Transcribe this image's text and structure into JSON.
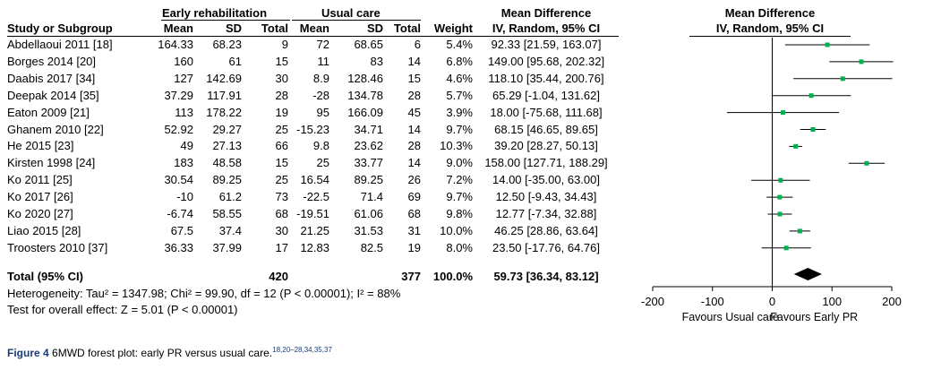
{
  "table": {
    "group_er": "Early rehabilitation",
    "group_uc": "Usual care",
    "group_md": "Mean Difference",
    "group_md2": "Mean Difference",
    "col_study": "Study or Subgroup",
    "col_mean1": "Mean",
    "col_sd1": "SD",
    "col_total1": "Total",
    "col_mean2": "Mean",
    "col_sd2": "SD",
    "col_total2": "Total",
    "col_weight": "Weight",
    "col_md": "IV, Random, 95% CI",
    "col_md2": "IV, Random, 95% CI",
    "rows": [
      {
        "study": "Abdellaoui 2011 [18]",
        "m1": "164.33",
        "sd1": "68.23",
        "n1": "9",
        "m2": "72",
        "sd2": "68.65",
        "n2": "6",
        "w": "5.4%",
        "md": "92.33 [21.59, 163.07]"
      },
      {
        "study": "Borges 2014 [20]",
        "m1": "160",
        "sd1": "61",
        "n1": "15",
        "m2": "11",
        "sd2": "83",
        "n2": "14",
        "w": "6.8%",
        "md": "149.00 [95.68, 202.32]"
      },
      {
        "study": "Daabis 2017 [34]",
        "m1": "127",
        "sd1": "142.69",
        "n1": "30",
        "m2": "8.9",
        "sd2": "128.46",
        "n2": "15",
        "w": "4.6%",
        "md": "118.10 [35.44, 200.76]"
      },
      {
        "study": "Deepak 2014 [35]",
        "m1": "37.29",
        "sd1": "117.91",
        "n1": "28",
        "m2": "-28",
        "sd2": "134.78",
        "n2": "28",
        "w": "5.7%",
        "md": "65.29 [-1.04, 131.62]"
      },
      {
        "study": "Eaton 2009 [21]",
        "m1": "113",
        "sd1": "178.22",
        "n1": "19",
        "m2": "95",
        "sd2": "166.09",
        "n2": "45",
        "w": "3.9%",
        "md": "18.00 [-75.68, 111.68]"
      },
      {
        "study": "Ghanem 2010 [22]",
        "m1": "52.92",
        "sd1": "29.27",
        "n1": "25",
        "m2": "-15.23",
        "sd2": "34.71",
        "n2": "14",
        "w": "9.7%",
        "md": "68.15 [46.65, 89.65]"
      },
      {
        "study": "He 2015 [23]",
        "m1": "49",
        "sd1": "27.13",
        "n1": "66",
        "m2": "9.8",
        "sd2": "23.62",
        "n2": "28",
        "w": "10.3%",
        "md": "39.20 [28.27, 50.13]"
      },
      {
        "study": "Kirsten 1998 [24]",
        "m1": "183",
        "sd1": "48.58",
        "n1": "15",
        "m2": "25",
        "sd2": "33.77",
        "n2": "14",
        "w": "9.0%",
        "md": "158.00 [127.71, 188.29]"
      },
      {
        "study": "Ko 2011 [25]",
        "m1": "30.54",
        "sd1": "89.25",
        "n1": "25",
        "m2": "16.54",
        "sd2": "89.25",
        "n2": "26",
        "w": "7.2%",
        "md": "14.00 [-35.00, 63.00]"
      },
      {
        "study": "Ko 2017 [26]",
        "m1": "-10",
        "sd1": "61.2",
        "n1": "73",
        "m2": "-22.5",
        "sd2": "71.4",
        "n2": "69",
        "w": "9.7%",
        "md": "12.50 [-9.43, 34.43]"
      },
      {
        "study": "Ko 2020 [27]",
        "m1": "-6.74",
        "sd1": "58.55",
        "n1": "68",
        "m2": "-19.51",
        "sd2": "61.06",
        "n2": "68",
        "w": "9.8%",
        "md": "12.77 [-7.34, 32.88]"
      },
      {
        "study": "Liao 2015 [28]",
        "m1": "67.5",
        "sd1": "37.4",
        "n1": "30",
        "m2": "21.25",
        "sd2": "31.53",
        "n2": "31",
        "w": "10.0%",
        "md": "46.25 [28.86, 63.64]"
      },
      {
        "study": "Troosters 2010 [37]",
        "m1": "36.33",
        "sd1": "37.99",
        "n1": "17",
        "m2": "12.83",
        "sd2": "82.5",
        "n2": "19",
        "w": "8.0%",
        "md": "23.50 [-17.76, 64.76]"
      }
    ],
    "total": {
      "label": "Total (95% CI)",
      "n1": "420",
      "n2": "377",
      "w": "100.0%",
      "md": "59.73 [36.34, 83.12]"
    },
    "heterogeneity": "Heterogeneity: Tau² = 1347.98; Chi² = 99.90, df = 12 (P < 0.00001); I² = 88%",
    "overall_test": "Test for overall effect: Z = 5.01 (P < 0.00001)"
  },
  "chart_data": {
    "type": "scatter",
    "title": "Mean Difference",
    "subtitle": "IV, Random, 95% CI",
    "xlim": [
      -200,
      200
    ],
    "xticks": [
      -200,
      -100,
      0,
      100,
      200
    ],
    "xlabel_left": "Favours Usual care",
    "xlabel_right": "Favours Early PR",
    "point_color": "#00b050",
    "studies": [
      {
        "est": 92.33,
        "lo": 21.59,
        "hi": 163.07
      },
      {
        "est": 149.0,
        "lo": 95.68,
        "hi": 202.32
      },
      {
        "est": 118.1,
        "lo": 35.44,
        "hi": 200.76
      },
      {
        "est": 65.29,
        "lo": -1.04,
        "hi": 131.62
      },
      {
        "est": 18.0,
        "lo": -75.68,
        "hi": 111.68
      },
      {
        "est": 68.15,
        "lo": 46.65,
        "hi": 89.65
      },
      {
        "est": 39.2,
        "lo": 28.27,
        "hi": 50.13
      },
      {
        "est": 158.0,
        "lo": 127.71,
        "hi": 188.29
      },
      {
        "est": 14.0,
        "lo": -35.0,
        "hi": 63.0
      },
      {
        "est": 12.5,
        "lo": -9.43,
        "hi": 34.43
      },
      {
        "est": 12.77,
        "lo": -7.34,
        "hi": 32.88
      },
      {
        "est": 46.25,
        "lo": 28.86,
        "hi": 63.64
      },
      {
        "est": 23.5,
        "lo": -17.76,
        "hi": 64.76
      }
    ],
    "overall": {
      "est": 59.73,
      "lo": 36.34,
      "hi": 83.12
    }
  },
  "caption": {
    "label": "Figure 4",
    "text": "6MWD forest plot: early PR versus usual care.",
    "refs": "18,20–28,34,35,37"
  }
}
